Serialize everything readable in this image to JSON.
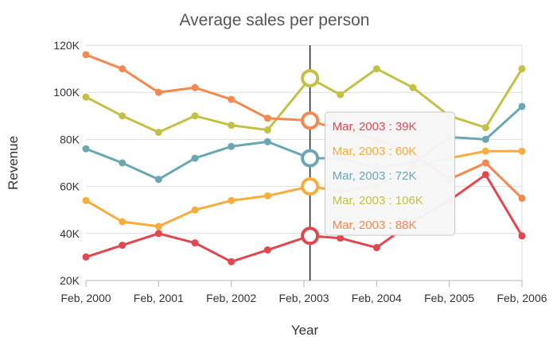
{
  "chart_data": {
    "type": "line",
    "title": "Average sales per person",
    "xlabel": "Year",
    "ylabel": "Revenue",
    "x_ticks": [
      "Feb, 2000",
      "Feb, 2001",
      "Feb, 2002",
      "Feb, 2003",
      "Feb, 2004",
      "Feb, 2005",
      "Feb, 2006"
    ],
    "y_ticks": [
      "20K",
      "40K",
      "60K",
      "80K",
      "100K",
      "120K"
    ],
    "ylim": [
      20,
      120
    ],
    "xlim": [
      "2000-02",
      "2006-02"
    ],
    "grid": true,
    "series": [
      {
        "color": "#e0474e",
        "points": [
          [
            "2000-02",
            30
          ],
          [
            "2000-08",
            35
          ],
          [
            "2001-02",
            40
          ],
          [
            "2001-08",
            36
          ],
          [
            "2002-02",
            28
          ],
          [
            "2002-08",
            33
          ],
          [
            "2003-03",
            39
          ],
          [
            "2003-08",
            38
          ],
          [
            "2004-02",
            34
          ],
          [
            "2004-08",
            45
          ],
          [
            "2005-02",
            54
          ],
          [
            "2005-08",
            65
          ],
          [
            "2006-02",
            39
          ]
        ]
      },
      {
        "color": "#f6ad3b",
        "points": [
          [
            "2000-02",
            54
          ],
          [
            "2000-08",
            45
          ],
          [
            "2001-02",
            43
          ],
          [
            "2001-08",
            50
          ],
          [
            "2002-02",
            54
          ],
          [
            "2002-08",
            56
          ],
          [
            "2003-03",
            60
          ],
          [
            "2003-08",
            58
          ],
          [
            "2004-02",
            60
          ],
          [
            "2004-08",
            68
          ],
          [
            "2005-02",
            72
          ],
          [
            "2005-08",
            75
          ],
          [
            "2006-02",
            75
          ]
        ]
      },
      {
        "color": "#6aa7b3",
        "points": [
          [
            "2000-02",
            76
          ],
          [
            "2000-08",
            70
          ],
          [
            "2001-02",
            63
          ],
          [
            "2001-08",
            72
          ],
          [
            "2002-02",
            77
          ],
          [
            "2002-08",
            79
          ],
          [
            "2003-03",
            72
          ],
          [
            "2003-08",
            72
          ],
          [
            "2004-02",
            68
          ],
          [
            "2004-08",
            70
          ],
          [
            "2005-02",
            81
          ],
          [
            "2005-08",
            80
          ],
          [
            "2006-02",
            94
          ]
        ]
      },
      {
        "color": "#c2c145",
        "points": [
          [
            "2000-02",
            98
          ],
          [
            "2000-08",
            90
          ],
          [
            "2001-02",
            83
          ],
          [
            "2001-08",
            90
          ],
          [
            "2002-02",
            86
          ],
          [
            "2002-08",
            84
          ],
          [
            "2003-03",
            106
          ],
          [
            "2003-08",
            99
          ],
          [
            "2004-02",
            110
          ],
          [
            "2004-08",
            102
          ],
          [
            "2005-02",
            90
          ],
          [
            "2005-08",
            85
          ],
          [
            "2006-02",
            110
          ]
        ]
      },
      {
        "color": "#f4894f",
        "points": [
          [
            "2000-02",
            116
          ],
          [
            "2000-08",
            110
          ],
          [
            "2001-02",
            100
          ],
          [
            "2001-08",
            102
          ],
          [
            "2002-02",
            97
          ],
          [
            "2002-08",
            89
          ],
          [
            "2003-03",
            88
          ],
          [
            "2003-08",
            84
          ],
          [
            "2004-02",
            80
          ],
          [
            "2004-08",
            74
          ],
          [
            "2005-02",
            63
          ],
          [
            "2005-08",
            70
          ],
          [
            "2006-02",
            55
          ]
        ]
      }
    ],
    "crosshair_x": "2003-03",
    "tooltip": {
      "lines": [
        {
          "text": "Mar, 2003 : 39K",
          "color": "#e0474e"
        },
        {
          "text": "Mar, 2003 : 60K",
          "color": "#f6ad3b"
        },
        {
          "text": "Mar, 2003 : 72K",
          "color": "#6aa7b3"
        },
        {
          "text": "Mar, 2003 : 106K",
          "color": "#c2c145"
        },
        {
          "text": "Mar, 2003 : 88K",
          "color": "#f4894f"
        }
      ]
    }
  }
}
